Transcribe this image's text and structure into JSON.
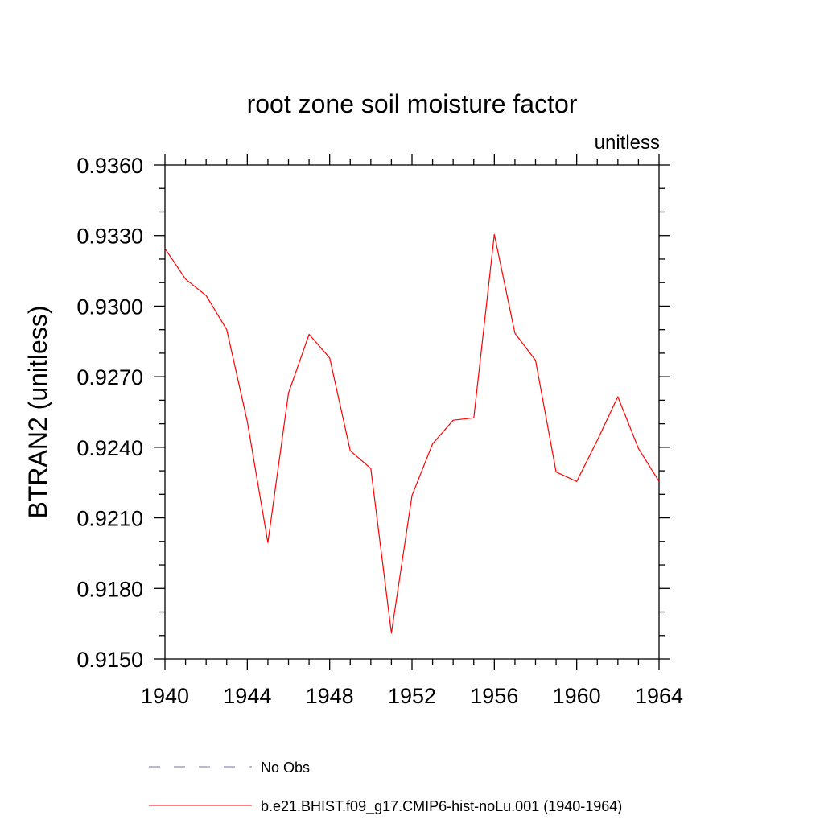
{
  "chart_data": {
    "type": "line",
    "title": "root zone soil moisture factor",
    "units_label": "unitless",
    "ylabel": "BTRAN2  (unitless)",
    "xlabel": "",
    "xlim": [
      1940,
      1964
    ],
    "ylim": [
      0.915,
      0.936
    ],
    "x_ticks": [
      1940,
      1944,
      1948,
      1952,
      1956,
      1960,
      1964
    ],
    "x_tick_labels": [
      "1940",
      "1944",
      "1948",
      "1952",
      "1956",
      "1960",
      "1964"
    ],
    "y_ticks": [
      0.915,
      0.918,
      0.921,
      0.924,
      0.927,
      0.93,
      0.933,
      0.936
    ],
    "y_tick_labels": [
      "0.9150",
      "0.9180",
      "0.9210",
      "0.9240",
      "0.9270",
      "0.9300",
      "0.9330",
      "0.9360"
    ],
    "grid": false,
    "legend_position": "bottom",
    "series": [
      {
        "name": "b.e21.BHIST.f09_g17.CMIP6-hist-noLu.001 (1940-1964)",
        "color": "#ff0000",
        "dash": "solid",
        "x": [
          1940,
          1941,
          1942,
          1943,
          1944,
          1945,
          1946,
          1947,
          1948,
          1949,
          1950,
          1951,
          1952,
          1953,
          1954,
          1955,
          1956,
          1957,
          1958,
          1959,
          1960,
          1961,
          1962,
          1963,
          1964
        ],
        "y": [
          0.93245,
          0.93115,
          0.93045,
          0.929,
          0.9251,
          0.91995,
          0.9263,
          0.9288,
          0.9278,
          0.92385,
          0.9231,
          0.9161,
          0.92195,
          0.92415,
          0.92515,
          0.92525,
          0.93305,
          0.92885,
          0.9277,
          0.92295,
          0.92255,
          0.9243,
          0.92615,
          0.92395,
          0.92255
        ]
      }
    ],
    "legend": [
      {
        "name": "No Obs",
        "color": "#7070b8",
        "dash": "dashed"
      },
      {
        "name": "b.e21.BHIST.f09_g17.CMIP6-hist-noLu.001 (1940-1964)",
        "color": "#ff0000",
        "dash": "solid"
      }
    ]
  }
}
